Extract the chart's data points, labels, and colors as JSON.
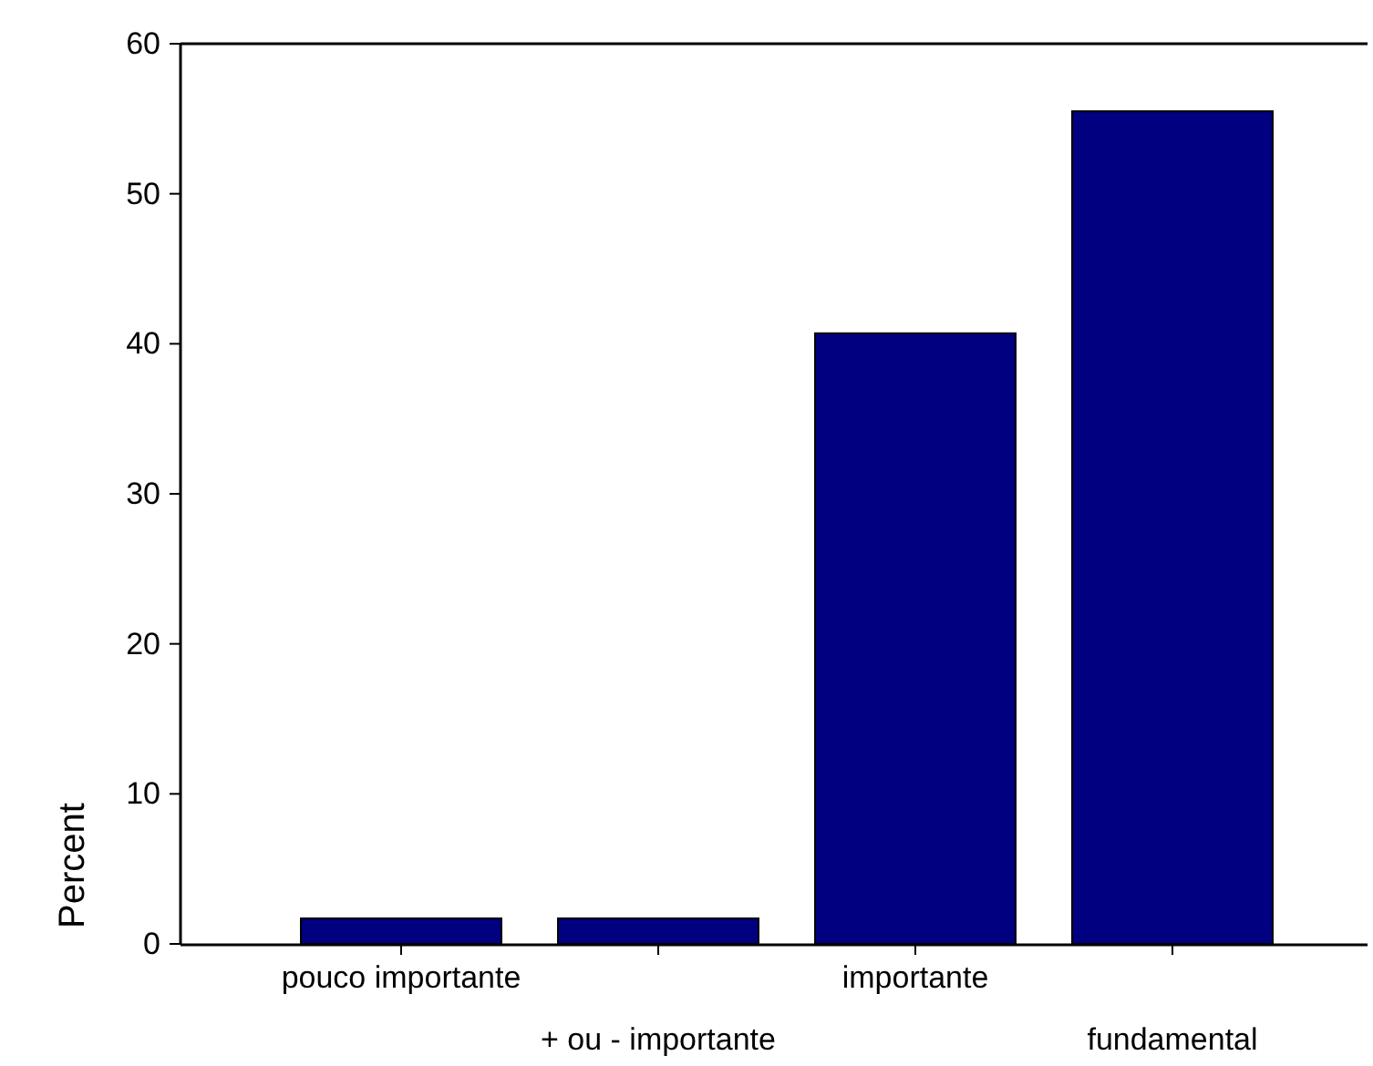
{
  "chart_data": {
    "type": "bar",
    "ylabel": "Percent",
    "categories": [
      "pouco importante",
      "+ ou - importante",
      "importante",
      "fundamental"
    ],
    "values": [
      1.7,
      1.7,
      40.7,
      55.5
    ],
    "color": "#000080",
    "ylim": [
      0,
      60
    ],
    "yticks": [
      0,
      10,
      20,
      30,
      40,
      50,
      60
    ],
    "grid": false
  }
}
